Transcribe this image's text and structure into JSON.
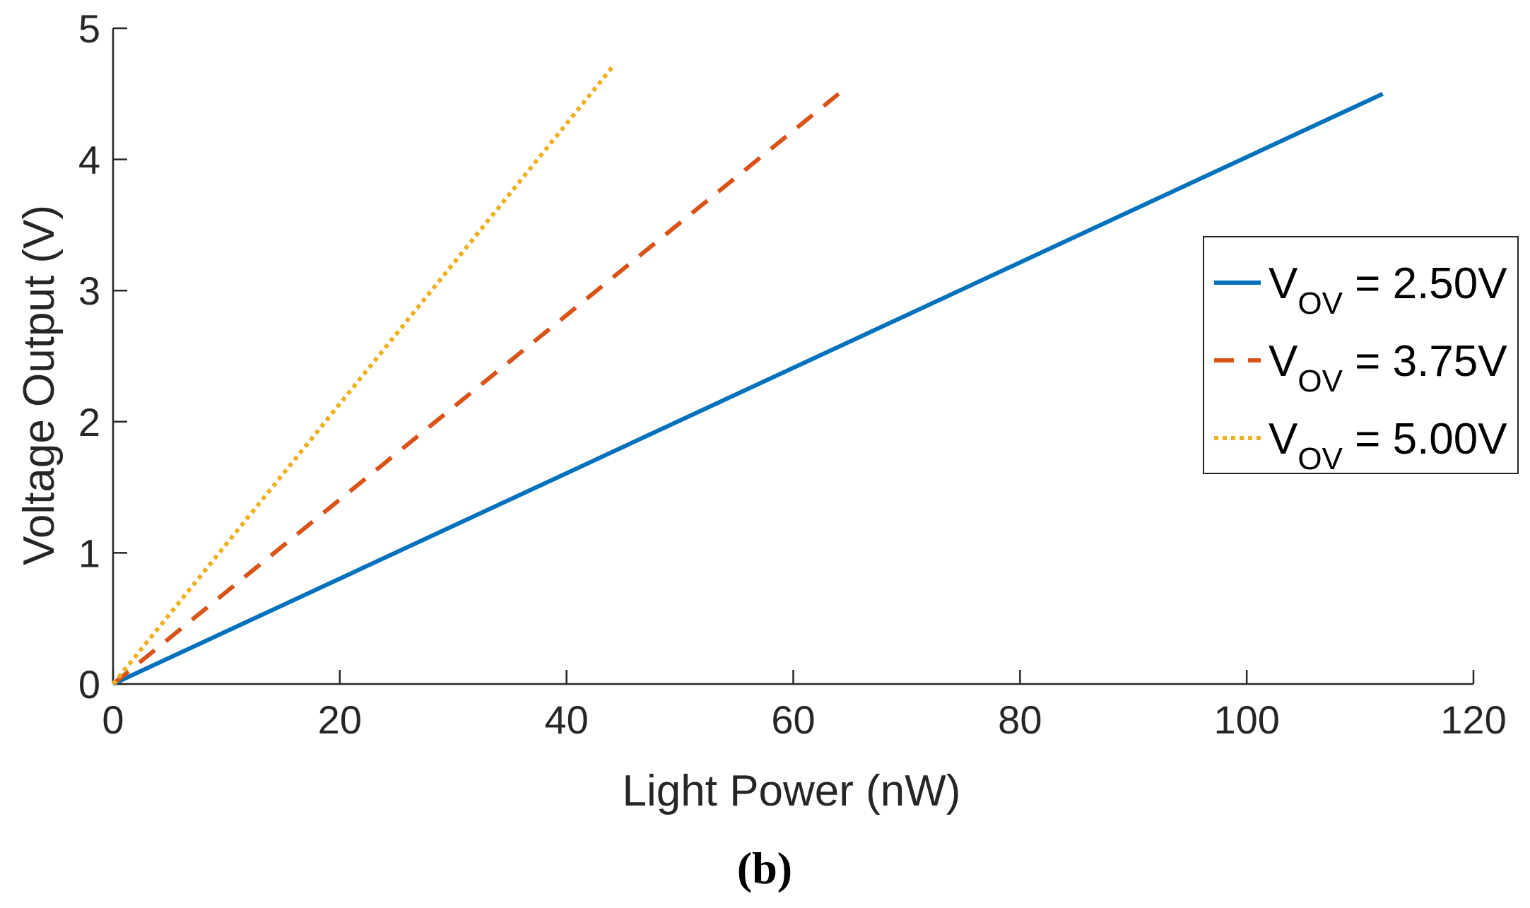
{
  "chart_data": {
    "type": "line",
    "title": "",
    "xlabel": "Light Power (nW)",
    "ylabel": "Voltage Output (V)",
    "xlim": [
      0,
      120
    ],
    "ylim": [
      0,
      5
    ],
    "xticks": [
      0,
      20,
      40,
      60,
      80,
      100,
      120
    ],
    "yticks": [
      0,
      1,
      2,
      3,
      4,
      5
    ],
    "grid": false,
    "legend_position": "right",
    "series": [
      {
        "name": "V_OV = 2.50V",
        "legend_main": "V",
        "legend_sub": "OV",
        "legend_value": " = 2.50V",
        "color": "#0072BD",
        "style": "solid",
        "x": [
          0,
          112
        ],
        "y": [
          0,
          4.5
        ]
      },
      {
        "name": "V_OV = 3.75V",
        "legend_main": "V",
        "legend_sub": "OV",
        "legend_value": " = 3.75V",
        "color": "#D95319",
        "style": "dashed",
        "x": [
          0,
          64
        ],
        "y": [
          0,
          4.5
        ]
      },
      {
        "name": "V_OV = 5.00V",
        "legend_main": "V",
        "legend_sub": "OV",
        "legend_value": " = 5.00V",
        "color": "#EDB120",
        "style": "dotted",
        "x": [
          0,
          44
        ],
        "y": [
          0,
          4.7
        ]
      }
    ]
  },
  "caption": "(b)"
}
